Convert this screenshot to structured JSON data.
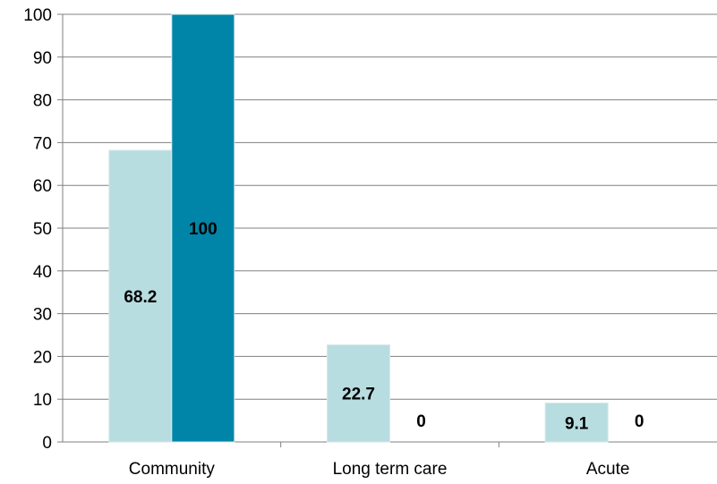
{
  "chart_data": {
    "type": "bar",
    "categories": [
      "Community",
      "Long term care",
      "Acute"
    ],
    "series": [
      {
        "values": [
          68.2,
          22.7,
          9.1
        ],
        "labels": [
          "68.2",
          "22.7",
          "9.1"
        ],
        "color": "#b8dde1"
      },
      {
        "values": [
          100,
          0,
          0
        ],
        "labels": [
          "100",
          "0",
          "0"
        ],
        "color": "#0085a8"
      }
    ],
    "ylim": [
      0,
      100
    ],
    "yticks": [
      "0",
      "10",
      "20",
      "30",
      "40",
      "50",
      "60",
      "70",
      "80",
      "90",
      "100"
    ],
    "grid": true,
    "gridColor": "#808080",
    "legend": "none",
    "title": "",
    "xlabel": "",
    "ylabel": ""
  }
}
